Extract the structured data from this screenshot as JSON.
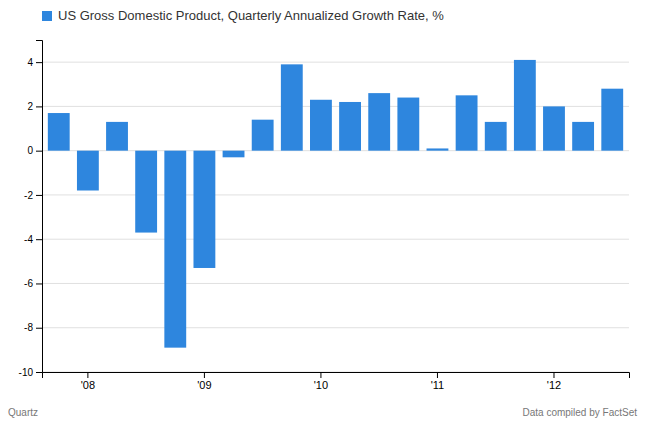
{
  "chart_data": {
    "type": "bar",
    "title": "US Gross Domestic Product, Quarterly Annualized Growth Rate, %",
    "categories": [
      null,
      "'08",
      null,
      null,
      null,
      "'09",
      null,
      null,
      null,
      "'10",
      null,
      null,
      null,
      "'11",
      null,
      null,
      null,
      "'12",
      null,
      null
    ],
    "values": [
      1.7,
      -1.8,
      1.3,
      -3.7,
      -8.9,
      -5.3,
      -0.3,
      1.4,
      3.9,
      2.3,
      2.2,
      2.6,
      2.4,
      0.1,
      2.5,
      1.3,
      4.1,
      2.0,
      1.3,
      2.8
    ],
    "color": "#2E86DE",
    "ylim": [
      -10,
      5
    ],
    "yticks": [
      -10,
      -8,
      -6,
      -4,
      -2,
      0,
      2,
      4
    ],
    "grid": true,
    "annotations": [
      "Quartz",
      "Data compiled by FactSet"
    ]
  }
}
